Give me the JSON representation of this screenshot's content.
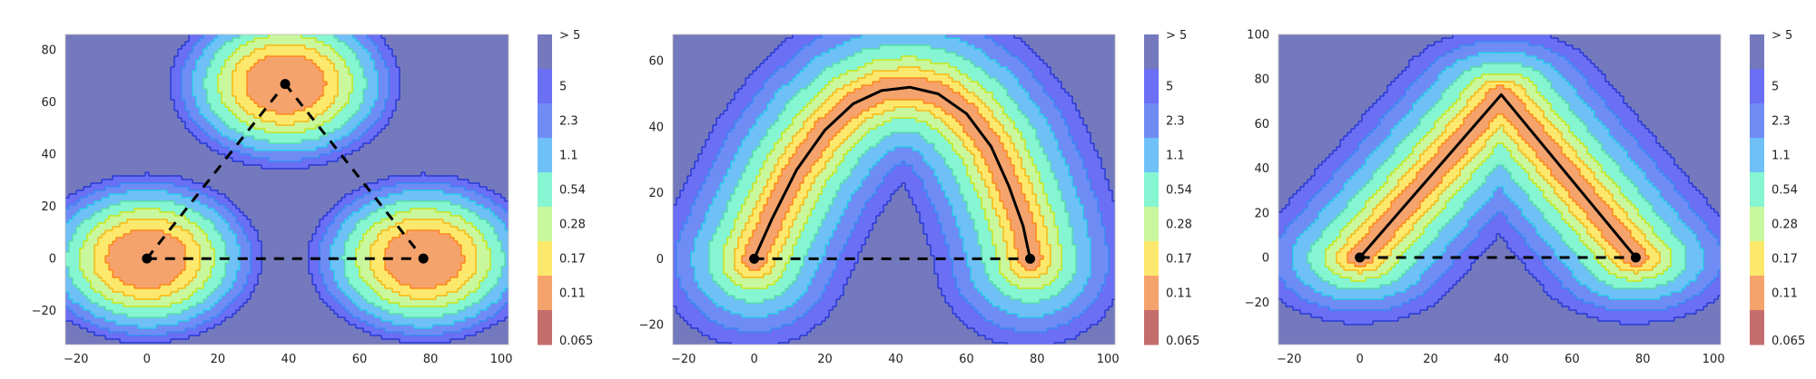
{
  "colorbar_levels": [
    {
      "label": "0.065",
      "color": "#c46d6d"
    },
    {
      "label": "0.11",
      "color": "#f5a36d"
    },
    {
      "label": "0.17",
      "color": "#fce86d"
    },
    {
      "label": "0.28",
      "color": "#c9f79e"
    },
    {
      "label": "0.54",
      "color": "#86f5d2"
    },
    {
      "label": "1.1",
      "color": "#6fc0f7"
    },
    {
      "label": "2.3",
      "color": "#6f8cf5"
    },
    {
      "label": "5",
      "color": "#6a6ff4"
    },
    {
      "label": "> 5",
      "color": "#7479bd"
    }
  ],
  "line_colors": [
    "#e8261b",
    "#ff7f0e",
    "#ffb000",
    "#cfe300",
    "#55e0a0",
    "#22d0e6",
    "#2f8ef0",
    "#1f2fd8"
  ],
  "chart_data": [
    {
      "type": "contour",
      "x_ticks": [
        -20,
        0,
        20,
        40,
        60,
        80,
        100
      ],
      "y_ticks": [
        -20,
        0,
        20,
        40,
        60,
        80
      ],
      "xlim": [
        -23,
        102
      ],
      "ylim": [
        -33,
        86
      ],
      "minima": [
        [
          0,
          0
        ],
        [
          78,
          0
        ],
        [
          39,
          67
        ]
      ],
      "paths": [
        {
          "style": "dashed",
          "points": [
            [
              0,
              0
            ],
            [
              78,
              0
            ]
          ]
        },
        {
          "style": "dashed",
          "points": [
            [
              0,
              0
            ],
            [
              39,
              67
            ]
          ]
        },
        {
          "style": "dashed",
          "points": [
            [
              39,
              67
            ],
            [
              78,
              0
            ]
          ]
        }
      ],
      "colorbar_ticks": [
        "> 5",
        "5",
        "2.3",
        "1.1",
        "0.54",
        "0.28",
        "0.17",
        "0.11",
        "0.065"
      ]
    },
    {
      "type": "contour",
      "x_ticks": [
        -20,
        0,
        20,
        40,
        60,
        80,
        100
      ],
      "y_ticks": [
        -20,
        0,
        20,
        40,
        60
      ],
      "xlim": [
        -23,
        102
      ],
      "ylim": [
        -26,
        68
      ],
      "minima": [
        [
          0,
          0
        ],
        [
          78,
          0
        ]
      ],
      "paths": [
        {
          "style": "dashed",
          "points": [
            [
              0,
              0
            ],
            [
              78,
              0
            ]
          ]
        },
        {
          "style": "solid",
          "points": [
            [
              0,
              0
            ],
            [
              5,
              12
            ],
            [
              12,
              27
            ],
            [
              20,
              39
            ],
            [
              28,
              47
            ],
            [
              36,
              51
            ],
            [
              44,
              52
            ],
            [
              52,
              50
            ],
            [
              60,
              44
            ],
            [
              67,
              34
            ],
            [
              72,
              22
            ],
            [
              76,
              10
            ],
            [
              78,
              0
            ]
          ]
        }
      ],
      "colorbar_ticks": [
        "> 5",
        "5",
        "2.3",
        "1.1",
        "0.54",
        "0.28",
        "0.17",
        "0.11",
        "0.065"
      ]
    },
    {
      "type": "contour",
      "x_ticks": [
        -20,
        0,
        20,
        40,
        60,
        80,
        100
      ],
      "y_ticks": [
        -20,
        0,
        20,
        40,
        60,
        80,
        100
      ],
      "xlim": [
        -23,
        102
      ],
      "ylim": [
        -39,
        100
      ],
      "minima": [
        [
          0,
          0
        ],
        [
          78,
          0
        ]
      ],
      "paths": [
        {
          "style": "dashed",
          "points": [
            [
              0,
              0
            ],
            [
              78,
              0
            ]
          ]
        },
        {
          "style": "solid",
          "points": [
            [
              0,
              0
            ],
            [
              40,
              73
            ],
            [
              78,
              0
            ]
          ]
        }
      ],
      "colorbar_ticks": [
        "> 5",
        "5",
        "2.3",
        "1.1",
        "0.54",
        "0.28",
        "0.17",
        "0.11",
        "0.065"
      ]
    }
  ]
}
